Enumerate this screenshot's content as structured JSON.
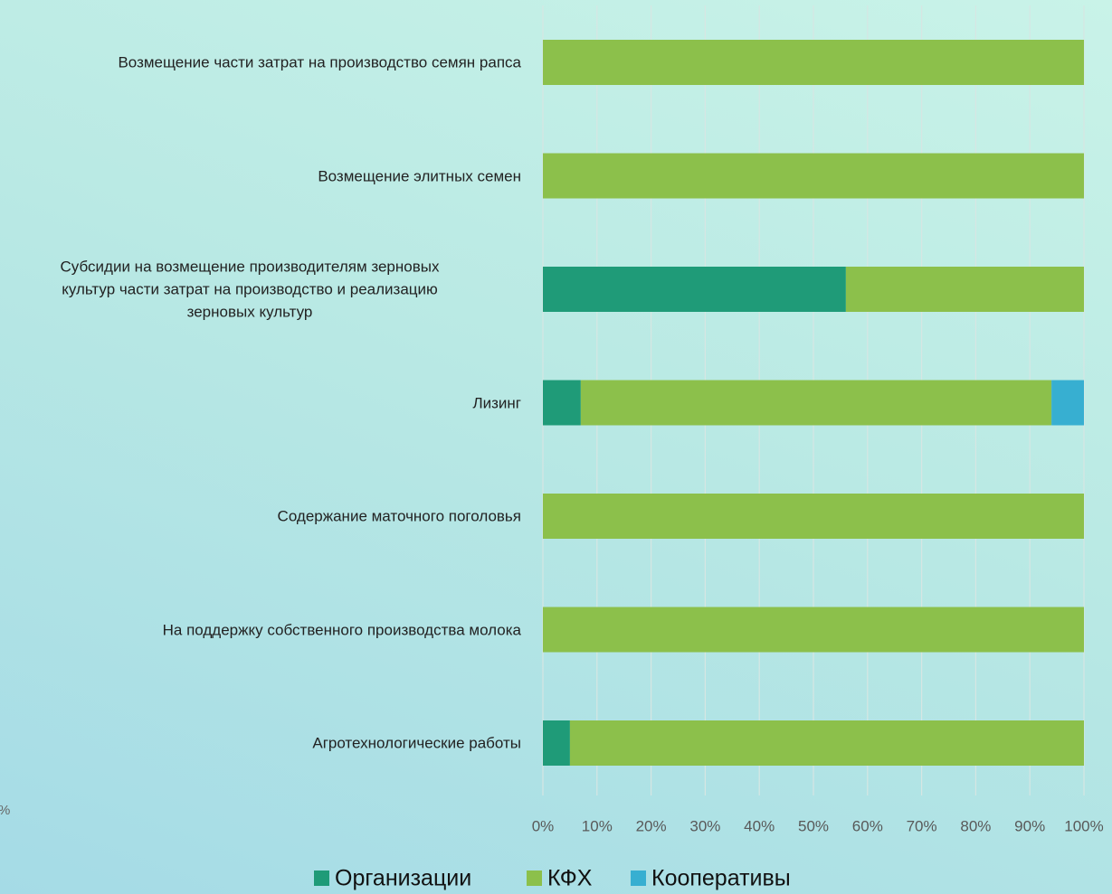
{
  "chart_data": {
    "type": "bar",
    "orientation": "horizontal",
    "stacked": true,
    "categories": [
      "Возмещение части затрат на производство семян рапса",
      "Возмещение элитных семен",
      "Субсидии на возмещение производителям зерновых\nкультур части затрат на производство и реализацию\nзерновых культур",
      "Лизинг",
      "Содержание маточного поголовья",
      "На поддержку собственного производства молока",
      "Агротехнологические работы"
    ],
    "series": [
      {
        "name": "Организации",
        "color": "#1f9b78",
        "values": [
          0,
          0,
          56,
          7,
          0,
          0,
          5
        ]
      },
      {
        "name": "КФХ",
        "color": "#8cc04b",
        "values": [
          100,
          100,
          44,
          87,
          100,
          100,
          95
        ]
      },
      {
        "name": "Кооперативы",
        "color": "#37afd1",
        "values": [
          0,
          0,
          0,
          6,
          0,
          0,
          0
        ]
      }
    ],
    "xlim": [
      0,
      100
    ],
    "xticks": [
      {
        "value": 0,
        "label": "0%"
      },
      {
        "value": 10,
        "label": "10%"
      },
      {
        "value": 20,
        "label": "20%"
      },
      {
        "value": 30,
        "label": "30%"
      },
      {
        "value": 40,
        "label": "40%"
      },
      {
        "value": 50,
        "label": "50%"
      },
      {
        "value": 60,
        "label": "60%"
      },
      {
        "value": 70,
        "label": "70%"
      },
      {
        "value": 80,
        "label": "80%"
      },
      {
        "value": 90,
        "label": "90%"
      },
      {
        "value": 100,
        "label": "100%"
      }
    ],
    "grid": true,
    "legend": "bottom",
    "annotation": "%"
  }
}
